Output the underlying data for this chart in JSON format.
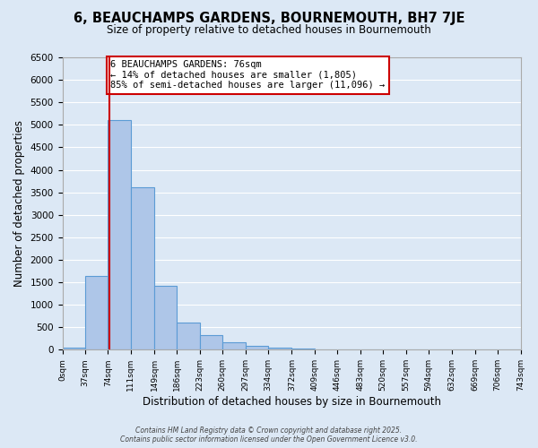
{
  "title": "6, BEAUCHAMPS GARDENS, BOURNEMOUTH, BH7 7JE",
  "subtitle": "Size of property relative to detached houses in Bournemouth",
  "xlabel": "Distribution of detached houses by size in Bournemouth",
  "ylabel": "Number of detached properties",
  "bar_values": [
    50,
    1650,
    5100,
    3620,
    1420,
    600,
    320,
    160,
    90,
    50,
    20,
    5,
    2,
    1,
    0,
    0,
    0,
    0,
    0,
    0
  ],
  "bin_edges": [
    0,
    37,
    74,
    111,
    149,
    186,
    223,
    260,
    297,
    334,
    372,
    409,
    446,
    483,
    520,
    557,
    594,
    632,
    669,
    706,
    743
  ],
  "tick_labels": [
    "0sqm",
    "37sqm",
    "74sqm",
    "111sqm",
    "149sqm",
    "186sqm",
    "223sqm",
    "260sqm",
    "297sqm",
    "334sqm",
    "372sqm",
    "409sqm",
    "446sqm",
    "483sqm",
    "520sqm",
    "557sqm",
    "594sqm",
    "632sqm",
    "669sqm",
    "706sqm",
    "743sqm"
  ],
  "bar_color": "#aec6e8",
  "bar_edgecolor": "#5b9bd5",
  "background_color": "#dce8f5",
  "grid_color": "#ffffff",
  "vline_x": 76,
  "vline_color": "#cc0000",
  "ylim": [
    0,
    6500
  ],
  "yticks": [
    0,
    500,
    1000,
    1500,
    2000,
    2500,
    3000,
    3500,
    4000,
    4500,
    5000,
    5500,
    6000,
    6500
  ],
  "annotation_text": "6 BEAUCHAMPS GARDENS: 76sqm\n← 14% of detached houses are smaller (1,805)\n85% of semi-detached houses are larger (11,096) →",
  "annotation_box_color": "#ffffff",
  "annotation_box_edgecolor": "#cc0000",
  "footer_line1": "Contains HM Land Registry data © Crown copyright and database right 2025.",
  "footer_line2": "Contains public sector information licensed under the Open Government Licence v3.0."
}
